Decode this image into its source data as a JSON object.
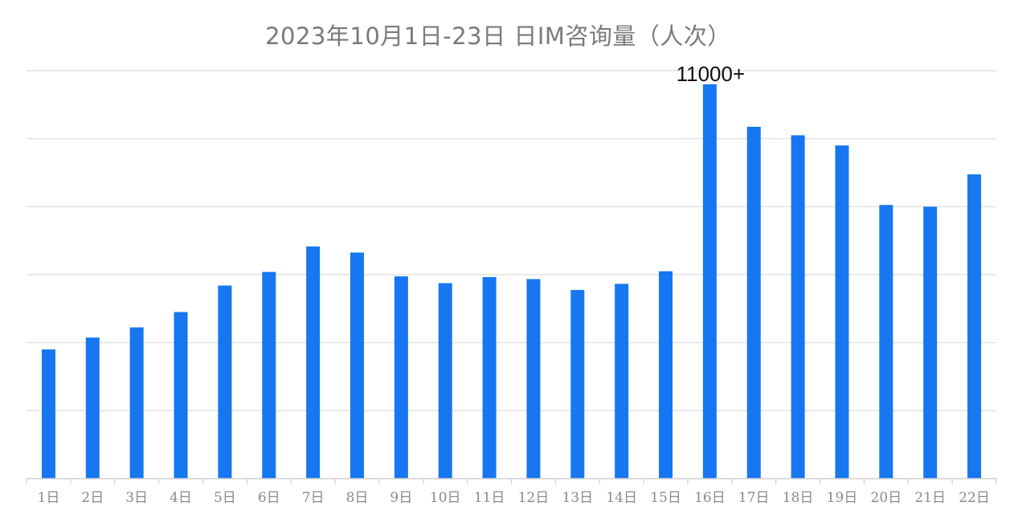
{
  "chart_data": {
    "type": "bar",
    "title": "2023年10月1日-23日 日IM咨询量（人次）",
    "categories": [
      "1日",
      "2日",
      "3日",
      "4日",
      "5日",
      "6日",
      "7日",
      "8日",
      "9日",
      "10日",
      "11日",
      "12日",
      "13日",
      "14日",
      "15日",
      "16日",
      "17日",
      "18日",
      "19日",
      "20日",
      "21日",
      "22日"
    ],
    "values": [
      3800,
      4150,
      4450,
      4900,
      5680,
      6080,
      6830,
      6650,
      5950,
      5750,
      5930,
      5870,
      5550,
      5730,
      6100,
      11600,
      10350,
      10100,
      9800,
      8050,
      8000,
      8950
    ],
    "ylim": [
      0,
      12000
    ],
    "gridline_step": 2000,
    "y_tick_labels_shown": false,
    "annotations": [
      {
        "category": "16日",
        "text": "11000+"
      }
    ],
    "bar_color": "#1677f0",
    "grid": true,
    "legend": "none",
    "xlabel": "",
    "ylabel": ""
  }
}
